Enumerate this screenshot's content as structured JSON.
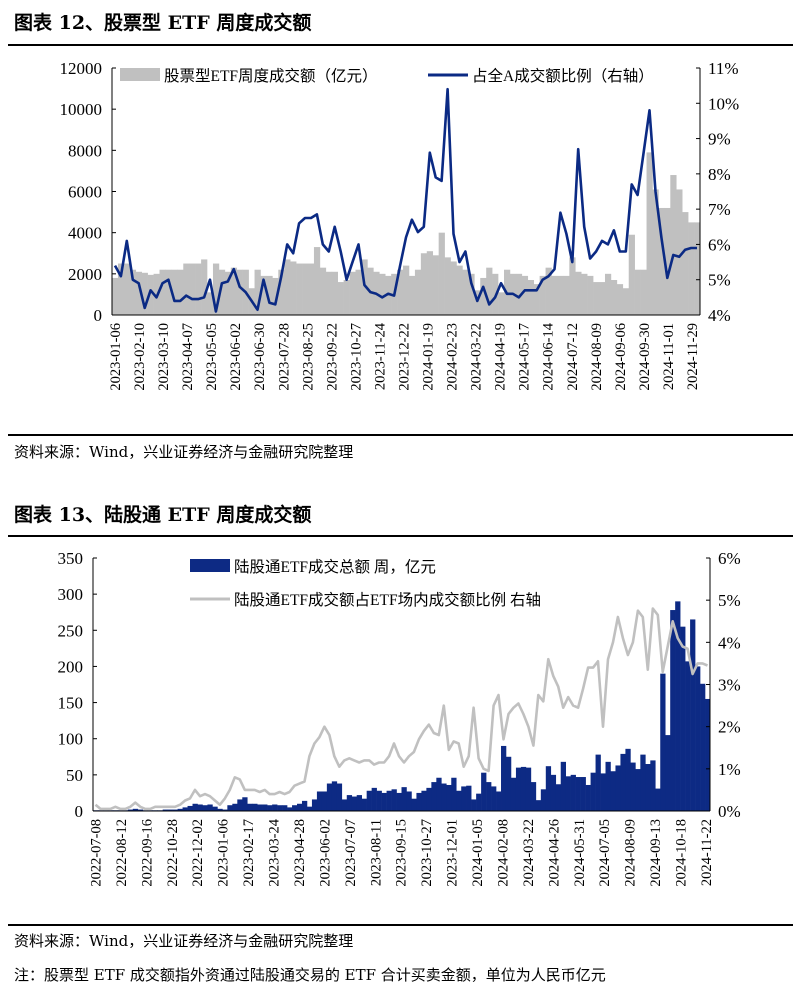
{
  "figure12": {
    "title": "图表 12、股票型 ETF 周度成交额",
    "source": "资料来源：Wind，兴业证券经济与金融研究院整理"
  },
  "figure13": {
    "title": "图表 13、陆股通 ETF 周度成交额",
    "source": "资料来源：Wind，兴业证券经济与金融研究院整理",
    "note": "注：股票型 ETF 成交额指外资通过陆股通交易的 ETF 合计买卖金额，单位为人民币亿元"
  },
  "chart_data": [
    {
      "type": "bar+line",
      "frequency": "weekly",
      "x_tick_labels": [
        "2023-01-06",
        "2023-02-10",
        "2023-03-10",
        "2023-04-07",
        "2023-05-05",
        "2023-06-02",
        "2023-06-30",
        "2023-07-28",
        "2023-08-25",
        "2023-09-22",
        "2023-10-27",
        "2023-11-24",
        "2023-12-22",
        "2024-01-19",
        "2024-02-23",
        "2024-03-22",
        "2024-04-19",
        "2024-05-17",
        "2024-06-14",
        "2024-07-12",
        "2024-08-09",
        "2024-09-06",
        "2024-09-30",
        "2024-11-01",
        "2024-11-29"
      ],
      "left_axis": {
        "range": [
          0,
          12000
        ],
        "ticks": [
          "0",
          "2000",
          "4000",
          "6000",
          "8000",
          "10000",
          "12000"
        ]
      },
      "right_axis": {
        "range": [
          4,
          11
        ],
        "ticks": [
          "4%",
          "5%",
          "6%",
          "7%",
          "8%",
          "9%",
          "10%",
          "11%"
        ]
      },
      "legend_placement": "top",
      "series": [
        {
          "name": "股票型ETF周度成交额（亿元）",
          "kind": "bar",
          "axis": "left",
          "color": "#c0c0c0",
          "values": [
            1800,
            2500,
            2500,
            2200,
            2100,
            2050,
            1950,
            2000,
            2200,
            2200,
            2200,
            2200,
            2500,
            2500,
            2500,
            2700,
            1100,
            2500,
            2200,
            2100,
            2300,
            2200,
            2200,
            1300,
            2200,
            1900,
            1900,
            1800,
            2200,
            2700,
            2600,
            2500,
            2500,
            2500,
            3300,
            2300,
            2100,
            2100,
            1600,
            1700,
            2100,
            2200,
            2700,
            2300,
            2100,
            2000,
            1900,
            2000,
            2200,
            2400,
            1900,
            2200,
            3000,
            3100,
            2900,
            4000,
            2800,
            2600,
            2400,
            2200,
            2000,
            1200,
            1800,
            2300,
            2000,
            1100,
            2200,
            2000,
            2000,
            1900,
            1700,
            1500,
            1900,
            2300,
            1900,
            1900,
            1900,
            2800,
            2100,
            2000,
            1900,
            1600,
            1600,
            2000,
            1700,
            1500,
            1300,
            3900,
            2200,
            2200,
            7900,
            6100,
            5200,
            5200,
            6800,
            6100,
            5000,
            4500,
            4500
          ]
        },
        {
          "name": "占全A成交额比例（右轴）",
          "kind": "line",
          "axis": "right",
          "color": "#0b2a84",
          "values": [
            5.4,
            5.1,
            6.1,
            5.0,
            4.9,
            4.2,
            4.7,
            4.5,
            4.9,
            5.0,
            4.4,
            4.4,
            4.55,
            4.45,
            4.45,
            4.5,
            5.0,
            4.1,
            4.9,
            4.95,
            5.3,
            4.8,
            4.65,
            4.4,
            4.15,
            5.0,
            4.35,
            4.3,
            5.1,
            6.0,
            5.75,
            6.6,
            6.75,
            6.75,
            6.85,
            6.0,
            5.8,
            6.5,
            5.8,
            5.0,
            5.5,
            6.0,
            4.85,
            4.65,
            4.6,
            4.5,
            4.6,
            4.55,
            5.4,
            6.2,
            6.7,
            6.35,
            6.5,
            8.6,
            7.9,
            7.8,
            10.4,
            6.3,
            5.5,
            5.8,
            4.9,
            4.4,
            4.8,
            4.3,
            4.5,
            4.9,
            4.6,
            4.6,
            4.5,
            4.7,
            4.7,
            4.7,
            5.0,
            5.1,
            5.3,
            6.9,
            6.3,
            5.5,
            8.7,
            6.5,
            5.6,
            5.8,
            6.1,
            6.0,
            6.4,
            5.8,
            5.8,
            7.7,
            7.4,
            8.6,
            9.8,
            7.5,
            6.2,
            5.05,
            5.7,
            5.65,
            5.85,
            5.9,
            5.9
          ]
        }
      ]
    },
    {
      "type": "bar+line",
      "frequency": "weekly",
      "x_tick_labels": [
        "2022-07-08",
        "2022-08-12",
        "2022-09-16",
        "2022-10-28",
        "2022-12-02",
        "2023-01-06",
        "2023-02-17",
        "2023-03-24",
        "2023-04-28",
        "2023-06-02",
        "2023-07-07",
        "2023-08-11",
        "2023-09-15",
        "2023-10-27",
        "2023-12-01",
        "2024-01-05",
        "2024-02-08",
        "2024-03-22",
        "2024-04-26",
        "2024-05-31",
        "2024-07-05",
        "2024-08-09",
        "2024-09-13",
        "2024-10-18",
        "2024-11-22"
      ],
      "left_axis": {
        "range": [
          0,
          350
        ],
        "ticks": [
          "0",
          "50",
          "100",
          "150",
          "200",
          "250",
          "300",
          "350"
        ]
      },
      "right_axis": {
        "range": [
          0,
          6
        ],
        "ticks": [
          "0%",
          "1%",
          "2%",
          "3%",
          "4%",
          "5%",
          "6%"
        ]
      },
      "legend_placement": "top",
      "series": [
        {
          "name": "陆股通ETF成交总额 周，亿元",
          "kind": "bar",
          "axis": "left",
          "color": "#0d2a84",
          "values": [
            1,
            1,
            1,
            1,
            1,
            1,
            1,
            2,
            3,
            2,
            1,
            1,
            1,
            1,
            2,
            2,
            2,
            3,
            5,
            7,
            10,
            9,
            8,
            9,
            6,
            3,
            2,
            8,
            10,
            16,
            19,
            10,
            10,
            9,
            9,
            8,
            9,
            8,
            8,
            5,
            8,
            10,
            14,
            6,
            16,
            27,
            27,
            38,
            41,
            38,
            16,
            22,
            20,
            22,
            17,
            28,
            32,
            28,
            25,
            28,
            30,
            25,
            33,
            27,
            17,
            25,
            28,
            32,
            40,
            46,
            38,
            36,
            46,
            28,
            34,
            35,
            16,
            24,
            53,
            40,
            34,
            27,
            90,
            75,
            46,
            60,
            61,
            60,
            40,
            15,
            30,
            62,
            50,
            37,
            68,
            48,
            50,
            47,
            47,
            36,
            53,
            78,
            52,
            68,
            55,
            63,
            79,
            86,
            67,
            58,
            78,
            65,
            70,
            31,
            190,
            105,
            278,
            290,
            255,
            207,
            265,
            200,
            176,
            155
          ]
        },
        {
          "name": "陆股通ETF成交额占ETF场内成交额比例 右轴",
          "kind": "line",
          "axis": "right",
          "color": "#c0c0c0",
          "values": [
            0.15,
            0.05,
            0.05,
            0.05,
            0.1,
            0.05,
            0.05,
            0.1,
            0.2,
            0.1,
            0.05,
            0.05,
            0.1,
            0.1,
            0.1,
            0.1,
            0.1,
            0.15,
            0.25,
            0.3,
            0.5,
            0.35,
            0.4,
            0.35,
            0.25,
            0.15,
            0.3,
            0.5,
            0.8,
            0.75,
            0.5,
            0.5,
            0.5,
            0.45,
            0.5,
            0.4,
            0.4,
            0.45,
            0.4,
            0.45,
            0.6,
            0.65,
            0.7,
            1.3,
            1.6,
            1.75,
            2.0,
            1.8,
            1.3,
            1.05,
            1.2,
            1.25,
            1.2,
            1.15,
            1.2,
            1.2,
            1.1,
            1.15,
            1.15,
            1.3,
            1.6,
            1.3,
            1.15,
            1.3,
            1.4,
            1.7,
            1.9,
            2.05,
            1.85,
            1.8,
            2.5,
            1.45,
            1.65,
            1.6,
            1.05,
            1.3,
            2.45,
            1.25,
            1.0,
            0.95,
            2.5,
            2.75,
            1.7,
            2.3,
            2.45,
            2.55,
            2.3,
            2.0,
            1.55,
            2.75,
            2.6,
            3.6,
            3.2,
            2.95,
            2.45,
            2.7,
            2.5,
            2.45,
            2.9,
            3.4,
            3.4,
            3.55,
            2.0,
            3.6,
            4.0,
            4.6,
            4.1,
            3.7,
            4.0,
            4.75,
            4.6,
            3.35,
            4.8,
            4.65,
            3.3,
            3.9,
            4.5,
            4.1,
            3.9,
            3.85,
            3.25,
            3.5,
            3.5,
            3.45
          ]
        }
      ]
    }
  ]
}
